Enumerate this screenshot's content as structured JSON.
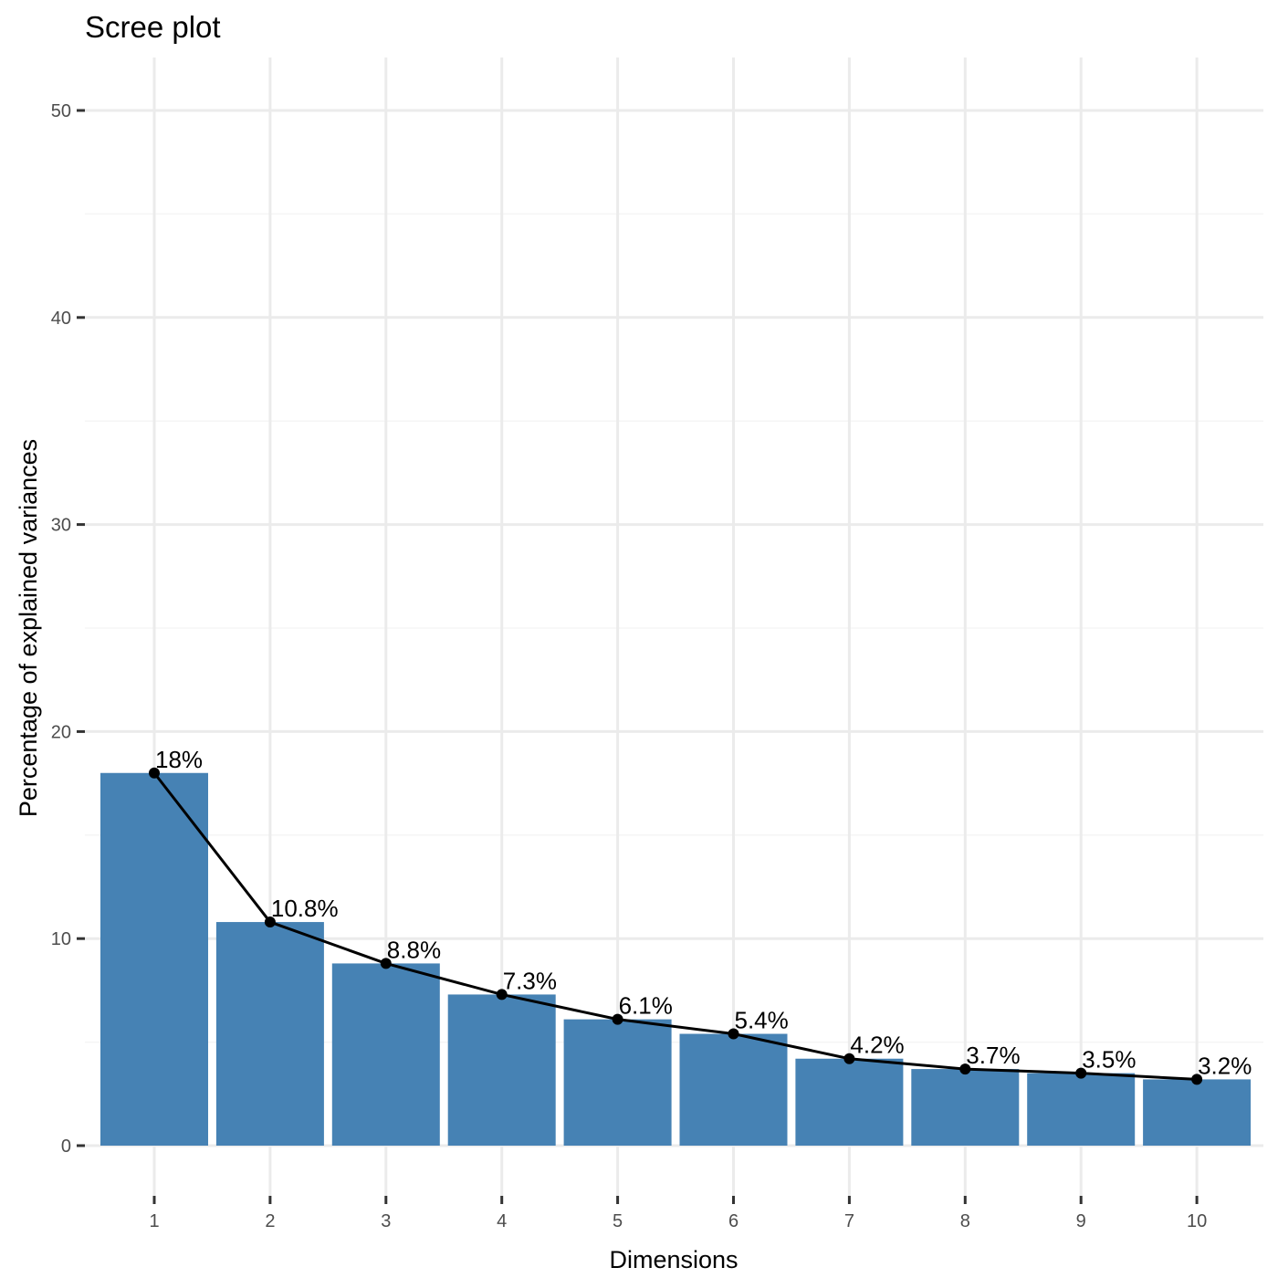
{
  "chart_data": {
    "type": "bar",
    "title": "Scree plot",
    "xlabel": "Dimensions",
    "ylabel": "Percentage of explained variances",
    "categories": [
      "1",
      "2",
      "3",
      "4",
      "5",
      "6",
      "7",
      "8",
      "9",
      "10"
    ],
    "values": [
      18.0,
      10.8,
      8.8,
      7.3,
      6.1,
      5.4,
      4.2,
      3.7,
      3.5,
      3.2
    ],
    "labels": [
      "18%",
      "10.8%",
      "8.8%",
      "7.3%",
      "6.1%",
      "5.4%",
      "4.2%",
      "3.7%",
      "3.5%",
      "3.2%"
    ],
    "ylim": [
      0,
      52
    ],
    "yticks": [
      0,
      10,
      20,
      30,
      40,
      50
    ],
    "line_overlay": true,
    "grid": true,
    "colors": {
      "bar": "#4682b4",
      "line": "#000000",
      "grid_major": "#ebebeb",
      "grid_minor": "#f5f5f5"
    }
  }
}
